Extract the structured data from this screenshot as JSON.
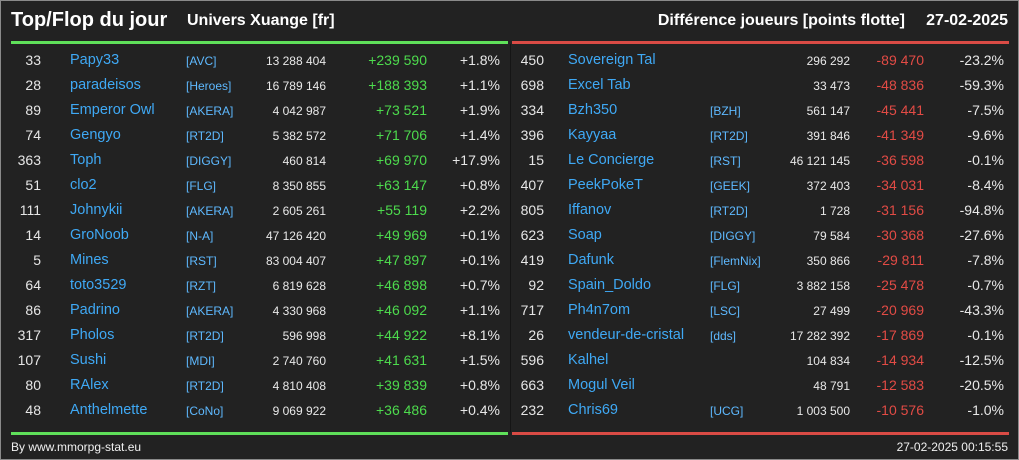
{
  "header": {
    "title": "Top/Flop du jour",
    "universe": "Univers Xuange [fr]",
    "metric": "Différence joueurs [points flotte]",
    "date": "27-02-2025"
  },
  "colors": {
    "top_accent": "#5fe05a",
    "flop_accent": "#d94b45",
    "name": "#3fa9f5",
    "guild": "#5eb9ff"
  },
  "top": [
    {
      "rank": "33",
      "name": "Papy33",
      "guild": "[AVC]",
      "total": "13 288 404",
      "diff": "+239 590",
      "pct": "+1.8%"
    },
    {
      "rank": "28",
      "name": "paradeisos",
      "guild": "[Heroes]",
      "total": "16 789 146",
      "diff": "+188 393",
      "pct": "+1.1%"
    },
    {
      "rank": "89",
      "name": "Emperor Owl",
      "guild": "[AKERA]",
      "total": "4 042 987",
      "diff": "+73 521",
      "pct": "+1.9%"
    },
    {
      "rank": "74",
      "name": "Gengyo",
      "guild": "[RT2D]",
      "total": "5 382 572",
      "diff": "+71 706",
      "pct": "+1.4%"
    },
    {
      "rank": "363",
      "name": "Toph",
      "guild": "[DIGGY]",
      "total": "460 814",
      "diff": "+69 970",
      "pct": "+17.9%"
    },
    {
      "rank": "51",
      "name": "clo2",
      "guild": "[FLG]",
      "total": "8 350 855",
      "diff": "+63 147",
      "pct": "+0.8%"
    },
    {
      "rank": "111",
      "name": "Johnykii",
      "guild": "[AKERA]",
      "total": "2 605 261",
      "diff": "+55 119",
      "pct": "+2.2%"
    },
    {
      "rank": "14",
      "name": "GroNoob",
      "guild": "[N-A]",
      "total": "47 126 420",
      "diff": "+49 969",
      "pct": "+0.1%"
    },
    {
      "rank": "5",
      "name": "Mines",
      "guild": "[RST]",
      "total": "83 004 407",
      "diff": "+47 897",
      "pct": "+0.1%"
    },
    {
      "rank": "64",
      "name": "toto3529",
      "guild": "[RZT]",
      "total": "6 819 628",
      "diff": "+46 898",
      "pct": "+0.7%"
    },
    {
      "rank": "86",
      "name": "Padrino",
      "guild": "[AKERA]",
      "total": "4 330 968",
      "diff": "+46 092",
      "pct": "+1.1%"
    },
    {
      "rank": "317",
      "name": "Pholos",
      "guild": "[RT2D]",
      "total": "596 998",
      "diff": "+44 922",
      "pct": "+8.1%"
    },
    {
      "rank": "107",
      "name": "Sushi",
      "guild": "[MDI]",
      "total": "2 740 760",
      "diff": "+41 631",
      "pct": "+1.5%"
    },
    {
      "rank": "80",
      "name": "RAlex",
      "guild": "[RT2D]",
      "total": "4 810 408",
      "diff": "+39 839",
      "pct": "+0.8%"
    },
    {
      "rank": "48",
      "name": "Anthelmette",
      "guild": "[CoNo]",
      "total": "9 069 922",
      "diff": "+36 486",
      "pct": "+0.4%"
    }
  ],
  "flop": [
    {
      "rank": "450",
      "name": "Sovereign Tal",
      "guild": "",
      "total": "296 292",
      "diff": "-89 470",
      "pct": "-23.2%"
    },
    {
      "rank": "698",
      "name": "Excel Tab",
      "guild": "",
      "total": "33 473",
      "diff": "-48 836",
      "pct": "-59.3%"
    },
    {
      "rank": "334",
      "name": "Bzh350",
      "guild": "[BZH]",
      "total": "561 147",
      "diff": "-45 441",
      "pct": "-7.5%"
    },
    {
      "rank": "396",
      "name": "Kayyaa",
      "guild": "[RT2D]",
      "total": "391 846",
      "diff": "-41 349",
      "pct": "-9.6%"
    },
    {
      "rank": "15",
      "name": "Le Concierge",
      "guild": "[RST]",
      "total": "46 121 145",
      "diff": "-36 598",
      "pct": "-0.1%"
    },
    {
      "rank": "407",
      "name": "PeekPokeT",
      "guild": "[GEEK]",
      "total": "372 403",
      "diff": "-34 031",
      "pct": "-8.4%"
    },
    {
      "rank": "805",
      "name": "Iffanov",
      "guild": "[RT2D]",
      "total": "1 728",
      "diff": "-31 156",
      "pct": "-94.8%"
    },
    {
      "rank": "623",
      "name": "Soap",
      "guild": "[DIGGY]",
      "total": "79 584",
      "diff": "-30 368",
      "pct": "-27.6%"
    },
    {
      "rank": "419",
      "name": "Dafunk",
      "guild": "[FlemNix]",
      "total": "350 866",
      "diff": "-29 811",
      "pct": "-7.8%"
    },
    {
      "rank": "92",
      "name": "Spain_Doldo",
      "guild": "[FLG]",
      "total": "3 882 158",
      "diff": "-25 478",
      "pct": "-0.7%"
    },
    {
      "rank": "717",
      "name": "Ph4n7om",
      "guild": "[LSC]",
      "total": "27 499",
      "diff": "-20 969",
      "pct": "-43.3%"
    },
    {
      "rank": "26",
      "name": "vendeur-de-cristal",
      "guild": "[dds]",
      "total": "17 282 392",
      "diff": "-17 869",
      "pct": "-0.1%"
    },
    {
      "rank": "596",
      "name": "Kalhel",
      "guild": "",
      "total": "104 834",
      "diff": "-14 934",
      "pct": "-12.5%"
    },
    {
      "rank": "663",
      "name": "Mogul Veil",
      "guild": "",
      "total": "48 791",
      "diff": "-12 583",
      "pct": "-20.5%"
    },
    {
      "rank": "232",
      "name": "Chris69",
      "guild": "[UCG]",
      "total": "1 003 500",
      "diff": "-10 576",
      "pct": "-1.0%"
    }
  ],
  "footer": {
    "source": "By www.mmorpg-stat.eu",
    "timestamp": "27-02-2025 00:15:55"
  }
}
